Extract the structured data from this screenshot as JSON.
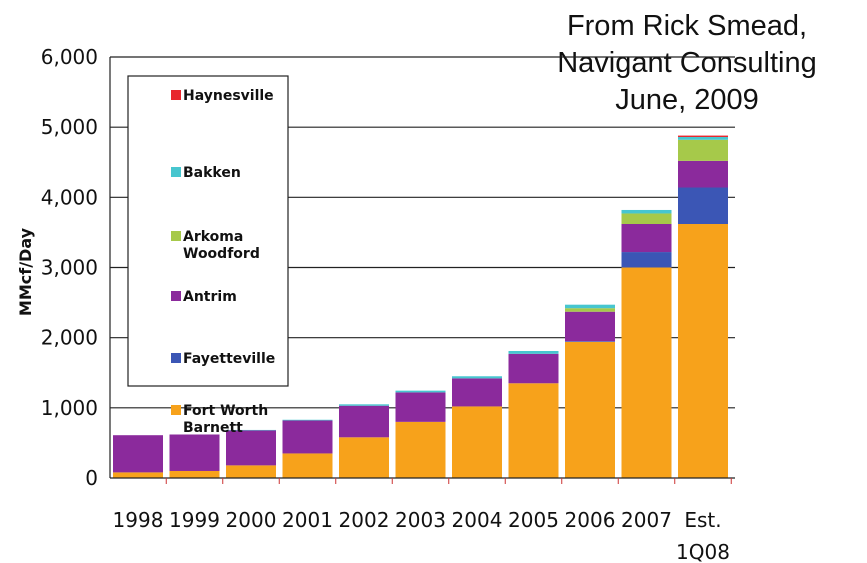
{
  "source_note": [
    "From Rick Smead,",
    "Navigant Consulting",
    "June, 2009"
  ],
  "chart_data": {
    "type": "bar",
    "stacked": true,
    "ylabel": "MMcf/Day",
    "ylim": [
      0,
      6000
    ],
    "yticks": [
      0,
      1000,
      2000,
      3000,
      4000,
      5000,
      6000
    ],
    "ytick_labels": [
      "0",
      "1,000",
      "2,000",
      "3,000",
      "4,000",
      "5,000",
      "6,000"
    ],
    "categories": [
      "1998",
      "1999",
      "2000",
      "2001",
      "2002",
      "2003",
      "2004",
      "2005",
      "2006",
      "2007",
      "Est. 1Q08"
    ],
    "category_lines": [
      [
        "1998"
      ],
      [
        "1999"
      ],
      [
        "2000"
      ],
      [
        "2001"
      ],
      [
        "2002"
      ],
      [
        "2003"
      ],
      [
        "2004"
      ],
      [
        "2005"
      ],
      [
        "2006"
      ],
      [
        "2007"
      ],
      [
        "Est.",
        "1Q08"
      ]
    ],
    "grid": "horizontal",
    "legend_position": "top-left",
    "series": [
      {
        "name": "Fort Worth Barnett",
        "legend_lines": [
          "Fort Worth",
          "Barnett"
        ],
        "color": "#f7a21b",
        "values": [
          80,
          100,
          180,
          350,
          580,
          800,
          1020,
          1350,
          1940,
          3000,
          3620
        ]
      },
      {
        "name": "Fayetteville",
        "legend_lines": [
          "Fayetteville"
        ],
        "color": "#3b56b5",
        "values": [
          0,
          0,
          0,
          0,
          0,
          0,
          0,
          0,
          10,
          220,
          520
        ]
      },
      {
        "name": "Antrim",
        "legend_lines": [
          "Antrim"
        ],
        "color": "#8b2a9c",
        "values": [
          530,
          520,
          500,
          470,
          450,
          420,
          400,
          420,
          420,
          400,
          380
        ]
      },
      {
        "name": "Arkoma Woodford",
        "legend_lines": [
          "Arkoma",
          "Woodford"
        ],
        "color": "#a6c94a",
        "values": [
          0,
          0,
          0,
          0,
          0,
          0,
          0,
          0,
          50,
          150,
          300
        ]
      },
      {
        "name": "Bakken",
        "legend_lines": [
          "Bakken"
        ],
        "color": "#47c6cf",
        "values": [
          0,
          0,
          5,
          10,
          20,
          25,
          30,
          40,
          50,
          50,
          40
        ]
      },
      {
        "name": "Haynesville",
        "legend_lines": [
          "Haynesville"
        ],
        "color": "#e8262d",
        "values": [
          0,
          0,
          0,
          0,
          0,
          0,
          0,
          0,
          0,
          0,
          20
        ]
      }
    ]
  }
}
